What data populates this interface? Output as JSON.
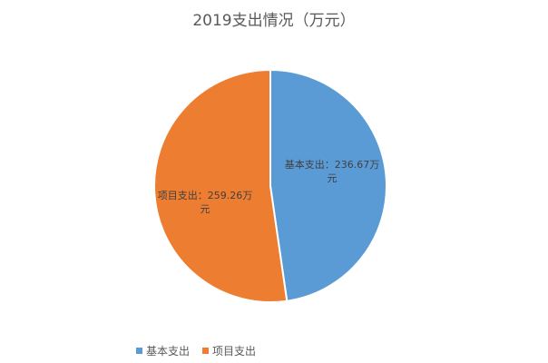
{
  "chart_data": {
    "type": "pie",
    "title": "2019支出情况（万元）",
    "unit": "万元",
    "slices": [
      {
        "name": "基本支出",
        "value": 236.67,
        "color": "#5B9BD5",
        "label": "基本支出：236.67万元"
      },
      {
        "name": "项目支出",
        "value": 259.26,
        "color": "#ED7D31",
        "label": "项目支出：259.26万元"
      }
    ],
    "start": "top",
    "direction": "clockwise",
    "legend_position": "bottom-left"
  }
}
